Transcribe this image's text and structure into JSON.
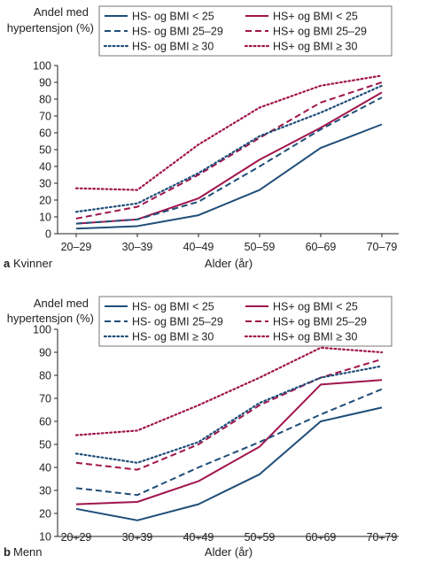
{
  "colors": {
    "hs_minus": "#1f4e79",
    "hs_plus": "#a0154c",
    "axis": "#222222"
  },
  "chart_data": [
    {
      "panel_letter": "a",
      "panel_label": "Kvinner",
      "type": "line",
      "ylabel_line1": "Andel med",
      "ylabel_line2": "hypertensjon (%)",
      "xlabel": "Alder (år)",
      "ylim": [
        0,
        100
      ],
      "yticks": [
        "0",
        "10",
        "20",
        "30",
        "40",
        "50",
        "60",
        "70",
        "80",
        "90",
        "100"
      ],
      "categories": [
        "20–29",
        "30–39",
        "40–49",
        "50–59",
        "60–69",
        "70–79"
      ],
      "series": [
        {
          "name": "HS- og BMI < 25",
          "group": "minus",
          "dash": "solid",
          "values": [
            3,
            4.5,
            11,
            26,
            51,
            65
          ]
        },
        {
          "name": "HS+ og BMI < 25",
          "group": "plus",
          "dash": "solid",
          "values": [
            6,
            8.5,
            21,
            44,
            63,
            84
          ]
        },
        {
          "name": "HS- og BMI 25–29",
          "group": "minus",
          "dash": "dashed",
          "values": [
            6,
            8.5,
            19,
            40,
            62,
            81
          ]
        },
        {
          "name": "HS+ og BMI 25–29",
          "group": "plus",
          "dash": "dashed",
          "values": [
            9,
            16,
            35,
            57,
            78,
            90
          ]
        },
        {
          "name": "HS- og BMI ≥ 30",
          "group": "minus",
          "dash": "dotted",
          "values": [
            13,
            18,
            36,
            58,
            72,
            88
          ]
        },
        {
          "name": "HS+ og BMI ≥ 30",
          "group": "plus",
          "dash": "dotted",
          "values": [
            27,
            26,
            53,
            75,
            88,
            94
          ]
        }
      ]
    },
    {
      "panel_letter": "b",
      "panel_label": "Menn",
      "type": "line",
      "ylabel_line1": "Andel med",
      "ylabel_line2": "hypertensjon (%)",
      "xlabel": "Alder (år)",
      "ylim": [
        10,
        100
      ],
      "yticks": [
        "10",
        "20",
        "30",
        "40",
        "50",
        "60",
        "70",
        "80",
        "90",
        "100"
      ],
      "categories": [
        "20–29",
        "30–39",
        "40–49",
        "50–59",
        "60–69",
        "70–79"
      ],
      "series": [
        {
          "name": "HS- og BMI < 25",
          "group": "minus",
          "dash": "solid",
          "values": [
            22,
            17,
            24,
            37,
            60,
            66
          ]
        },
        {
          "name": "HS+ og BMI < 25",
          "group": "plus",
          "dash": "solid",
          "values": [
            24,
            25,
            34,
            49,
            76,
            78
          ]
        },
        {
          "name": "HS- og BMI 25–29",
          "group": "minus",
          "dash": "dashed",
          "values": [
            31,
            28,
            40,
            51,
            63,
            74
          ]
        },
        {
          "name": "HS+ og BMI 25–29",
          "group": "plus",
          "dash": "dashed",
          "values": [
            42,
            39,
            50,
            67,
            79,
            87
          ]
        },
        {
          "name": "HS- og BMI ≥ 30",
          "group": "minus",
          "dash": "dotted",
          "values": [
            46,
            42,
            51,
            68,
            79,
            84
          ]
        },
        {
          "name": "HS+ og BMI ≥ 30",
          "group": "plus",
          "dash": "dotted",
          "values": [
            54,
            56,
            67,
            79,
            92,
            90
          ]
        }
      ]
    }
  ]
}
